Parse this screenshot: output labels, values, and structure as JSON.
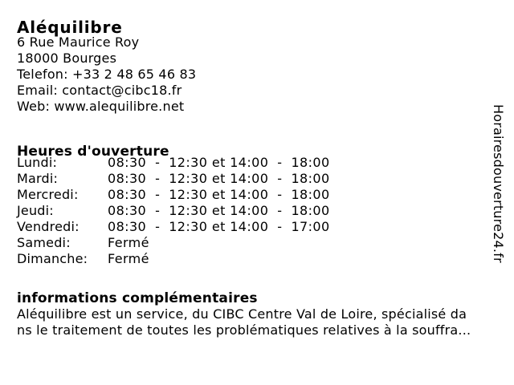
{
  "page": {
    "background": "#ffffff",
    "text_color": "#000000"
  },
  "business": {
    "name": "Aléquilibre",
    "contact_lines": [
      "6 Rue Maurice Roy",
      "18000 Bourges",
      "Telefon: +33 2 48 65 46 83",
      "Email: contact@cibc18.fr",
      "Web: www.alequilibre.net"
    ]
  },
  "hours": {
    "title": "Heures d'ouverture",
    "rows": [
      {
        "day": "Lundi:",
        "time": "08:30  -  12:30 et 14:00  -  18:00"
      },
      {
        "day": "Mardi:",
        "time": "08:30  -  12:30 et 14:00  -  18:00"
      },
      {
        "day": "Mercredi:",
        "time": "08:30  -  12:30 et 14:00  -  18:00"
      },
      {
        "day": "Jeudi:",
        "time": "08:30  -  12:30 et 14:00  -  18:00"
      },
      {
        "day": "Vendredi:",
        "time": "08:30  -  12:30 et 14:00  -  17:00"
      },
      {
        "day": "Samedi:",
        "time": "Fermé"
      },
      {
        "day": "Dimanche:",
        "time": "Fermé"
      }
    ]
  },
  "info": {
    "title": "informations complémentaires",
    "lines": [
      "Aléquilibre est un service, du CIBC Centre Val de Loire, spécialisé da",
      "ns le traitement de toutes les problématiques relatives à la souffra..."
    ]
  },
  "watermark": "Horairesdouverture24.fr"
}
